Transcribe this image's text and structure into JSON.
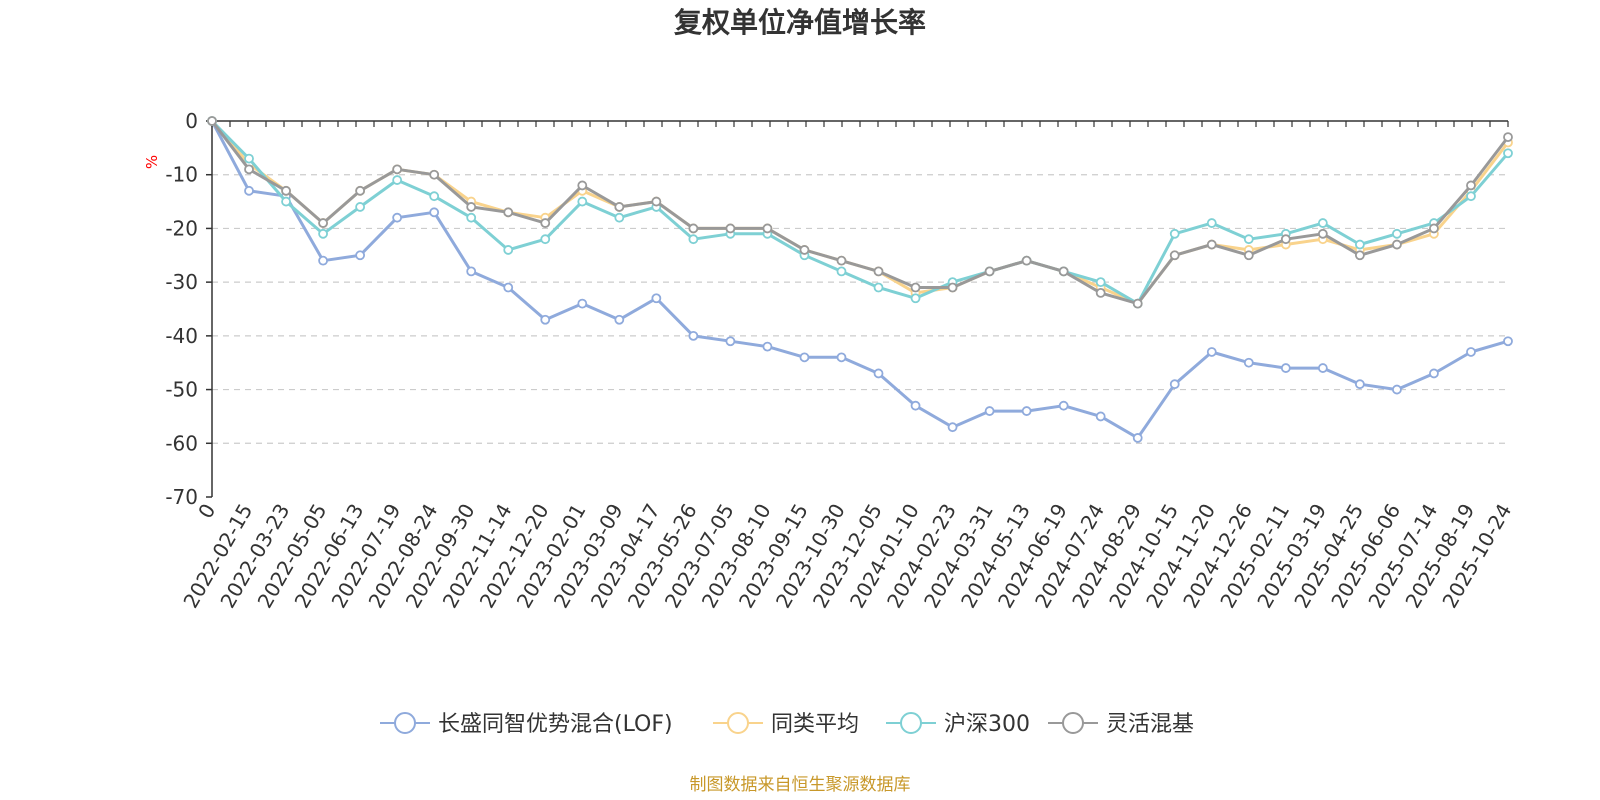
{
  "chart_data": {
    "type": "line",
    "title": "复权单位净值增长率",
    "ylabel": "%",
    "ylim": [
      -70,
      0
    ],
    "yticks": [
      0,
      -10,
      -20,
      -30,
      -40,
      -50,
      -60,
      -70
    ],
    "grid": "horizontal dashed",
    "legend_position": "bottom",
    "x": [
      "0",
      "2022-02-15",
      "2022-03-23",
      "2022-05-05",
      "2022-06-13",
      "2022-07-19",
      "2022-08-24",
      "2022-09-30",
      "2022-11-14",
      "2022-12-20",
      "2023-02-01",
      "2023-03-09",
      "2023-04-17",
      "2023-05-26",
      "2023-07-05",
      "2023-08-10",
      "2023-09-15",
      "2023-10-30",
      "2023-12-05",
      "2024-01-10",
      "2024-02-23",
      "2024-03-31",
      "2024-05-13",
      "2024-06-19",
      "2024-07-24",
      "2024-08-29",
      "2024-10-15",
      "2024-11-20",
      "2024-12-26",
      "2025-02-11",
      "2025-03-19",
      "2025-04-25",
      "2025-06-06",
      "2025-07-14",
      "2025-08-19",
      "2025-10-24"
    ],
    "series": [
      {
        "name": "长盛同智优势混合(LOF)",
        "color": "#8faadc",
        "values": [
          0,
          -13,
          -14,
          -26,
          -25,
          -18,
          -17,
          -28,
          -31,
          -37,
          -34,
          -37,
          -33,
          -40,
          -41,
          -42,
          -44,
          -44,
          -47,
          -53,
          -57,
          -54,
          -54,
          -53,
          -55,
          -59,
          -49,
          -43,
          -45,
          -46,
          -46,
          -49,
          -50,
          -47,
          -43,
          -41
        ]
      },
      {
        "name": "同类平均",
        "color": "#f9d38c",
        "values": [
          0,
          -8,
          -13,
          -19,
          -13,
          -9,
          -10,
          -15,
          -17,
          -18,
          -13,
          -16,
          -15,
          -20,
          -20,
          -20,
          -24,
          -26,
          -28,
          -32,
          -31,
          -28,
          -26,
          -28,
          -31,
          -34,
          -25,
          -23,
          -24,
          -23,
          -22,
          -24,
          -23,
          -21,
          -13,
          -4
        ]
      },
      {
        "name": "沪深300",
        "color": "#7ed0d4",
        "values": [
          0,
          -7,
          -15,
          -21,
          -16,
          -11,
          -14,
          -18,
          -24,
          -22,
          -15,
          -18,
          -16,
          -22,
          -21,
          -21,
          -25,
          -28,
          -31,
          -33,
          -30,
          -28,
          -26,
          -28,
          -30,
          -34,
          -21,
          -19,
          -22,
          -21,
          -19,
          -23,
          -21,
          -19,
          -14,
          -6
        ]
      },
      {
        "name": "灵活混基",
        "color": "#999999",
        "values": [
          0,
          -9,
          -13,
          -19,
          -13,
          -9,
          -10,
          -16,
          -17,
          -19,
          -12,
          -16,
          -15,
          -20,
          -20,
          -20,
          -24,
          -26,
          -28,
          -31,
          -31,
          -28,
          -26,
          -28,
          -32,
          -34,
          -25,
          -23,
          -25,
          -22,
          -21,
          -25,
          -23,
          -20,
          -12,
          -3
        ]
      }
    ]
  },
  "source_note": "制图数据来自恒生聚源数据库"
}
